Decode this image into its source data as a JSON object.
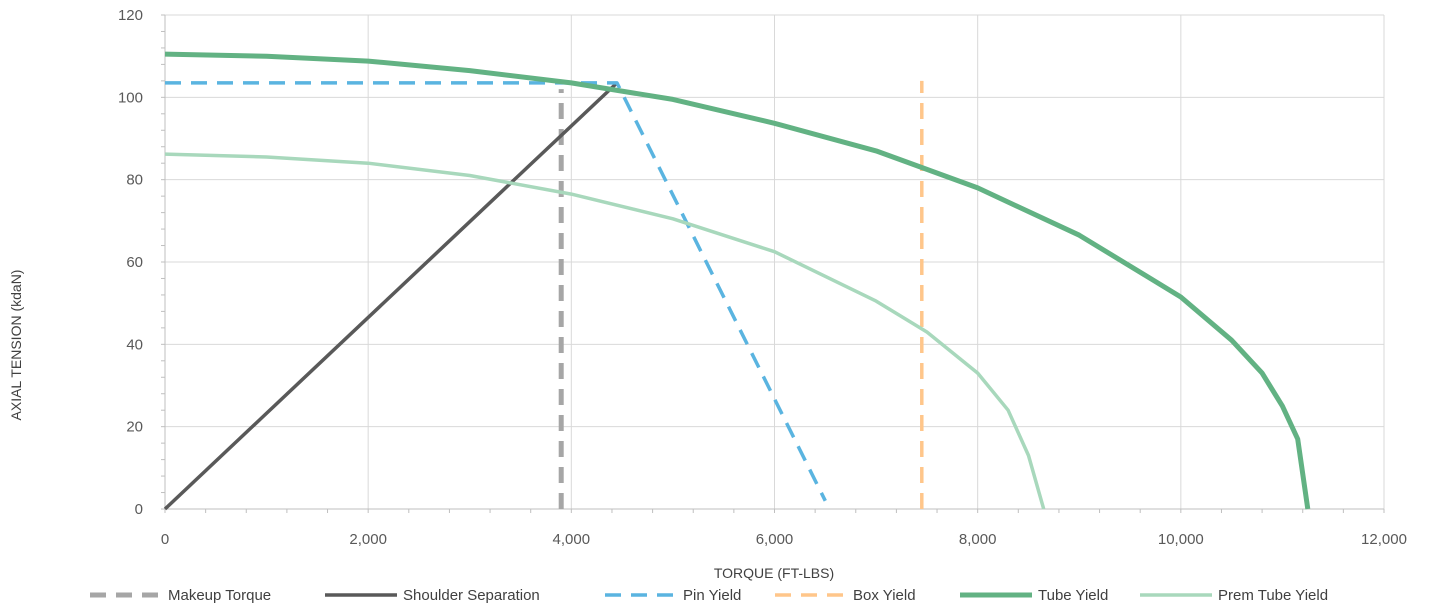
{
  "chart_data": {
    "type": "line",
    "xlabel": "TORQUE (FT-LBS)",
    "ylabel": "AXIAL TENSION (kdaN)",
    "xlim": [
      0,
      12000
    ],
    "ylim": [
      0,
      120
    ],
    "xticks": [
      0,
      2000,
      4000,
      6000,
      8000,
      10000,
      12000
    ],
    "xtick_labels": [
      "0",
      "2,000",
      "4,000",
      "6,000",
      "8,000",
      "10,000",
      "12,000"
    ],
    "yticks": [
      0,
      20,
      40,
      60,
      80,
      100,
      120
    ],
    "ytick_labels": [
      "0",
      "20",
      "40",
      "60",
      "80",
      "100",
      "120"
    ],
    "grid": true,
    "legend_position": "bottom",
    "series": [
      {
        "name": "Makeup Torque",
        "color": "#a6a6a6",
        "dash": "dashed",
        "width": "thick",
        "points": [
          [
            3900,
            0
          ],
          [
            3900,
            102
          ]
        ]
      },
      {
        "name": "Shoulder Separation",
        "color": "#595959",
        "dash": "solid",
        "width": "medium",
        "points": [
          [
            0,
            0
          ],
          [
            4450,
            103.5
          ]
        ]
      },
      {
        "name": "Pin Yield",
        "color": "#5ab4e0",
        "dash": "dashed",
        "width": "medium",
        "points": [
          [
            0,
            103.5
          ],
          [
            4450,
            103.5
          ],
          [
            6500,
            2
          ]
        ]
      },
      {
        "name": "Box Yield",
        "color": "#ffc68a",
        "dash": "dashed",
        "width": "medium",
        "points": [
          [
            7450,
            0
          ],
          [
            7450,
            104
          ]
        ]
      },
      {
        "name": "Tube Yield",
        "color": "#62b283",
        "dash": "solid",
        "width": "thick",
        "points": [
          [
            0,
            110.5
          ],
          [
            1000,
            110
          ],
          [
            2000,
            108.8
          ],
          [
            3000,
            106.5
          ],
          [
            4000,
            103.5
          ],
          [
            5000,
            99.5
          ],
          [
            6000,
            93.7
          ],
          [
            7000,
            87
          ],
          [
            8000,
            78
          ],
          [
            9000,
            66.5
          ],
          [
            10000,
            51.5
          ],
          [
            10500,
            41
          ],
          [
            10800,
            33
          ],
          [
            11000,
            25
          ],
          [
            11150,
            17
          ],
          [
            11250,
            0
          ]
        ]
      },
      {
        "name": "Prem Tube Yield",
        "color": "#a8d8bc",
        "dash": "solid",
        "width": "medium",
        "points": [
          [
            0,
            86.2
          ],
          [
            1000,
            85.5
          ],
          [
            2000,
            84
          ],
          [
            3000,
            81
          ],
          [
            4000,
            76.5
          ],
          [
            5000,
            70.5
          ],
          [
            6000,
            62.5
          ],
          [
            7000,
            50.5
          ],
          [
            7500,
            43
          ],
          [
            8000,
            33
          ],
          [
            8300,
            24
          ],
          [
            8500,
            13
          ],
          [
            8650,
            0
          ]
        ]
      }
    ]
  }
}
